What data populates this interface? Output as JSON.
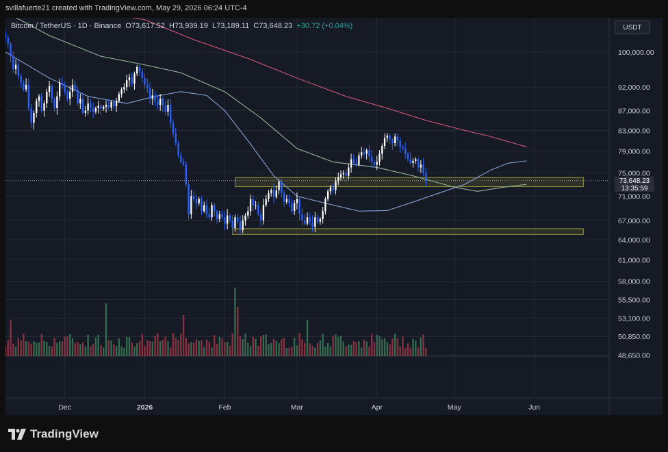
{
  "header": {
    "attribution": "svillafuerte21 created with TradingView.com, May 29, 2026 06:24 UTC-4"
  },
  "legend": {
    "symbol": "Bitcoin / TetherUS · 1D · Binance",
    "o": "O73,617.52",
    "h": "H73,939.19",
    "l": "L73,189.11",
    "c": "C73,648.23",
    "change": "+30.72 (+0.04%)"
  },
  "currency": "USDT",
  "last_price": {
    "price": "73,648.23",
    "countdown": "13:35:59"
  },
  "brand": {
    "name": "TradingView"
  },
  "colors": {
    "background": "#161a25",
    "up": "#ffffff",
    "down": "#2962ff",
    "ma_short": "#7e98c8",
    "ma_mid": "#8fa98f",
    "ma_long": "#c25272",
    "zone": "#c8c83c",
    "vol_up": "#3b7a57",
    "vol_down": "#9c3745"
  },
  "chart_data": {
    "type": "candlestick",
    "title": "Bitcoin / TetherUS · 1D · Binance",
    "y_scale": "log",
    "y_ticks": [
      100000,
      92000,
      87000,
      83000,
      79000,
      75000,
      71000,
      67000,
      64000,
      61000,
      58000,
      55500,
      53100,
      50850,
      48650
    ],
    "y_tick_labels": [
      "100,000.00",
      "92,000.00",
      "87,000.00",
      "83,000.00",
      "79,000.00",
      "75,000.00",
      "71,000.00",
      "67,000.00",
      "64,000.00",
      "61,000.00",
      "58,000.00",
      "55,500.00",
      "53,100.00",
      "50,850.00",
      "48,650.00"
    ],
    "x_ticks": [
      {
        "label": "Dec",
        "date": "2025-12-01"
      },
      {
        "label": "2026",
        "date": "2026-01-01"
      },
      {
        "label": "Feb",
        "date": "2026-02-01"
      },
      {
        "label": "Mar",
        "date": "2026-03-01"
      },
      {
        "label": "Apr",
        "date": "2026-04-01"
      },
      {
        "label": "May",
        "date": "2026-05-01"
      },
      {
        "label": "Jun",
        "date": "2026-06-01"
      }
    ],
    "x_range": [
      "2025-11-08",
      "2026-06-30"
    ],
    "start_date": "2025-11-08",
    "closes": [
      103500,
      102000,
      99000,
      96000,
      97000,
      94500,
      93000,
      91500,
      92500,
      87500,
      84500,
      86500,
      89000,
      90000,
      87000,
      88500,
      91000,
      92200,
      89500,
      87500,
      90000,
      93000,
      92500,
      91000,
      89500,
      91000,
      92500,
      91500,
      88500,
      89500,
      86500,
      87000,
      88500,
      87500,
      86800,
      87500,
      88000,
      87400,
      87800,
      88200,
      87600,
      88800,
      87900,
      89000,
      90500,
      91500,
      92000,
      93500,
      94200,
      92800,
      95000,
      96500,
      95500,
      94000,
      92500,
      91800,
      89500,
      90200,
      89000,
      88200,
      89500,
      88000,
      86800,
      88200,
      84500,
      82500,
      80500,
      78200,
      77000,
      76500,
      73000,
      68000,
      71000,
      70500,
      69800,
      70500,
      68500,
      69500,
      68000,
      67500,
      69500,
      68500,
      67200,
      68000,
      67500,
      66500,
      67800,
      67000,
      65800,
      67500,
      66800,
      65500,
      67000,
      67800,
      68500,
      70500,
      69500,
      69500,
      68000,
      67000,
      69500,
      70500,
      71500,
      72000,
      70800,
      72000,
      73500,
      71500,
      70000,
      70500,
      69800,
      68500,
      69800,
      70500,
      68000,
      67000,
      66500,
      67500,
      66800,
      66000,
      67500,
      66800,
      67200,
      68500,
      70500,
      71800,
      72500,
      72000,
      73500,
      74200,
      74800,
      75000,
      74500,
      76000,
      77500,
      76800,
      76500,
      78200,
      78800,
      78500,
      79200,
      78000,
      77000,
      76500,
      77000,
      78500,
      80000,
      81500,
      82000,
      81200,
      80500,
      81800,
      81000,
      79800,
      79500,
      78500,
      77500,
      76800,
      77200,
      77500,
      76000,
      76500,
      75000,
      73648.23
    ],
    "ma_short": {
      "name": "",
      "points": [
        [
          "2025-11-08",
          100000
        ],
        [
          "2025-11-25",
          94000
        ],
        [
          "2025-12-10",
          90000
        ],
        [
          "2025-12-25",
          88500
        ],
        [
          "2026-01-05",
          90000
        ],
        [
          "2026-01-15",
          91000
        ],
        [
          "2026-01-25",
          90200
        ],
        [
          "2026-02-01",
          87000
        ],
        [
          "2026-02-10",
          81000
        ],
        [
          "2026-02-20",
          74500
        ],
        [
          "2026-03-01",
          71000
        ],
        [
          "2026-03-15",
          69500
        ],
        [
          "2026-03-25",
          68500
        ],
        [
          "2026-04-05",
          68600
        ],
        [
          "2026-04-15",
          70000
        ],
        [
          "2026-04-25",
          71500
        ],
        [
          "2026-05-05",
          73000
        ],
        [
          "2026-05-15",
          75500
        ],
        [
          "2026-05-22",
          76800
        ],
        [
          "2026-05-29",
          77200
        ]
      ]
    },
    "ma_mid": {
      "name": "",
      "points": [
        [
          "2025-11-08",
          110000
        ],
        [
          "2025-11-25",
          104000
        ],
        [
          "2025-12-15",
          99000
        ],
        [
          "2026-01-01",
          97000
        ],
        [
          "2026-01-15",
          95200
        ],
        [
          "2026-02-01",
          91000
        ],
        [
          "2026-02-15",
          85500
        ],
        [
          "2026-03-01",
          79500
        ],
        [
          "2026-03-15",
          77000
        ],
        [
          "2026-04-01",
          76000
        ],
        [
          "2026-04-15",
          74500
        ],
        [
          "2026-05-01",
          72500
        ],
        [
          "2026-05-10",
          71800
        ],
        [
          "2026-05-20",
          72500
        ],
        [
          "2026-05-29",
          73000
        ]
      ]
    },
    "ma_long": {
      "name": "",
      "points": [
        [
          "2025-11-20",
          112000
        ],
        [
          "2025-12-10",
          110500
        ],
        [
          "2026-01-01",
          108000
        ],
        [
          "2026-01-20",
          103000
        ],
        [
          "2026-02-10",
          98500
        ],
        [
          "2026-03-01",
          94000
        ],
        [
          "2026-03-20",
          90000
        ],
        [
          "2026-04-05",
          87500
        ],
        [
          "2026-04-20",
          85000
        ],
        [
          "2026-05-05",
          83000
        ],
        [
          "2026-05-15",
          81800
        ],
        [
          "2026-05-29",
          79800
        ]
      ]
    },
    "zones": [
      {
        "from": "2026-02-05",
        "to": "2026-06-20",
        "low": 72600,
        "high": 74200
      },
      {
        "from": "2026-02-04",
        "to": "2026-06-20",
        "low": 64800,
        "high": 65700
      }
    ],
    "current_price": 73648.23,
    "volume_spikes": {
      "2026-02-05": 1.0,
      "2026-02-06": 0.72,
      "2025-12-17": 0.77,
      "2026-01-16": 0.6,
      "2025-11-10": 0.53,
      "2026-03-05": 0.53
    }
  }
}
